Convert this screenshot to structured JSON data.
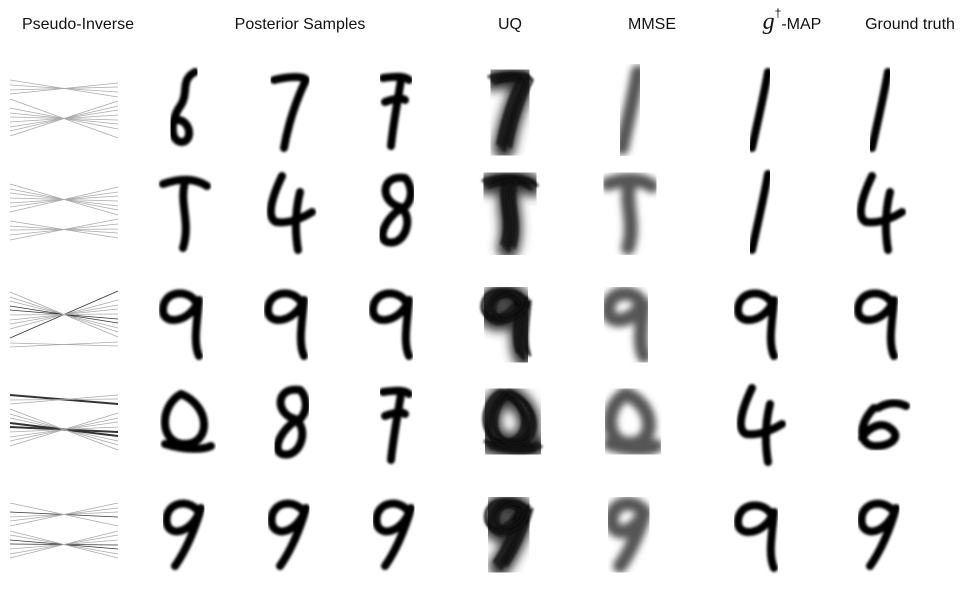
{
  "header": {
    "columns": [
      "Pseudo-Inverse",
      "Posterior Samples",
      "UQ",
      "MMSE"
    ],
    "map_header": {
      "symbol": "g",
      "superscript": "†",
      "suffix": "-MAP"
    },
    "last_column": "Ground truth"
  }
}
